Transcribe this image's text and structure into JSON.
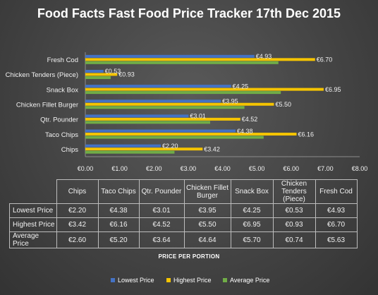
{
  "title": "Food Facts Fast Food Price Tracker 17th Dec 2015",
  "colors": {
    "lowest": "#4472c4",
    "highest": "#f5c400",
    "average": "#70ad47",
    "axis": "#8c8c8c",
    "text": "#f2f2f2"
  },
  "chart_data": {
    "type": "bar",
    "orientation": "horizontal",
    "title": "Food Facts Fast Food Price Tracker 17th Dec 2015",
    "xlabel": "PRICE PER PORTION",
    "ylabel": "",
    "xlim": [
      0,
      8
    ],
    "xticks": [
      "€0.00",
      "€1.00",
      "€2.00",
      "€3.00",
      "€4.00",
      "€5.00",
      "€6.00",
      "€7.00",
      "€8.00"
    ],
    "categories": [
      "Chips",
      "Taco Chips",
      "Qtr. Pounder",
      "Chicken Fillet Burger",
      "Snack Box",
      "Chicken Tenders (Piece)",
      "Fresh Cod"
    ],
    "series": [
      {
        "name": "Lowest Price",
        "values": [
          2.2,
          4.38,
          3.01,
          3.95,
          4.25,
          0.53,
          4.93
        ],
        "labels": [
          "€2.20",
          "€4.38",
          "€3.01",
          "€3.95",
          "€4.25",
          "€0.53",
          "€4.93"
        ]
      },
      {
        "name": "Highest Price",
        "values": [
          3.42,
          6.16,
          4.52,
          5.5,
          6.95,
          0.93,
          6.7
        ],
        "labels": [
          "€3.42",
          "€6.16",
          "€4.52",
          "€5.50",
          "€6.95",
          "€0.93",
          "€6.70"
        ]
      },
      {
        "name": "Average Price",
        "values": [
          2.6,
          5.2,
          3.64,
          4.64,
          5.7,
          0.74,
          5.63
        ],
        "labels": [
          "€2.60",
          "€5.20",
          "€3.64",
          "€4.64",
          "€5.70",
          "€0.74",
          "€5.63"
        ]
      }
    ],
    "legend_position": "bottom",
    "grid": false
  },
  "table": {
    "headers": [
      "Chips",
      "Taco Chips",
      "Qtr. Pounder",
      "Chicken Fillet Burger",
      "Snack Box",
      "Chicken Tenders (Piece)",
      "Fresh Cod"
    ],
    "rows": [
      {
        "label": "Lowest Price",
        "cells": [
          "€2.20",
          "€4.38",
          "€3.01",
          "€3.95",
          "€4.25",
          "€0.53",
          "€4.93"
        ]
      },
      {
        "label": "Highest Price",
        "cells": [
          "€3.42",
          "€6.16",
          "€4.52",
          "€5.50",
          "€6.95",
          "€0.93",
          "€6.70"
        ]
      },
      {
        "label": "Average Price",
        "cells": [
          "€2.60",
          "€5.20",
          "€3.64",
          "€4.64",
          "€5.70",
          "€0.74",
          "€5.63"
        ]
      }
    ]
  }
}
